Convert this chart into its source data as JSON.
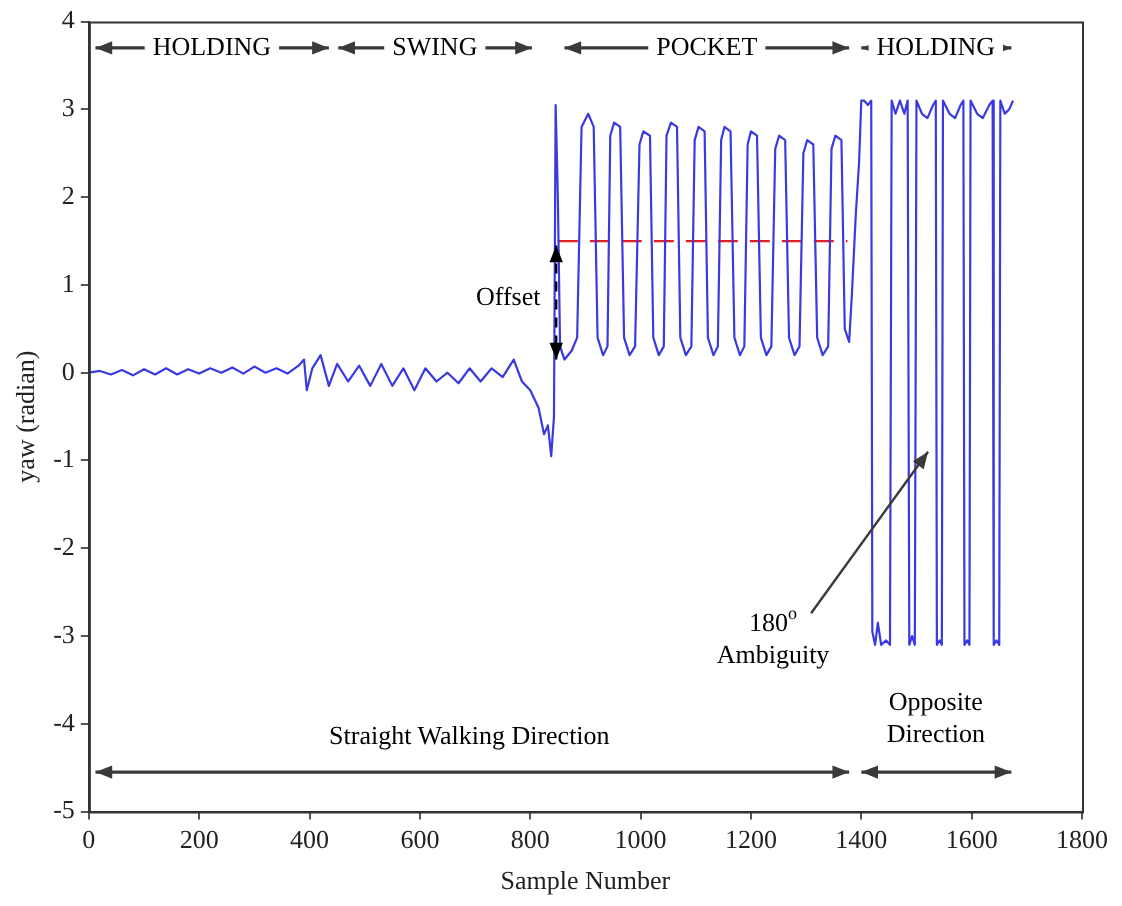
{
  "chart_data": {
    "type": "line",
    "xlabel": "Sample Number",
    "ylabel": "yaw (radian)",
    "xlim": [
      0,
      1800
    ],
    "xticks": [
      0,
      200,
      400,
      600,
      800,
      1000,
      1200,
      1400,
      1600,
      1800
    ],
    "ylim": [
      -5,
      4
    ],
    "yticks": [
      -5,
      -4,
      -3,
      -2,
      -1,
      0,
      1,
      2,
      3,
      4
    ],
    "grid": false,
    "legend": false,
    "marker": "none",
    "series": [
      {
        "color": "#3a3ae0",
        "x": [
          0,
          20,
          40,
          60,
          80,
          100,
          120,
          140,
          160,
          180,
          200,
          220,
          240,
          260,
          280,
          300,
          320,
          340,
          360,
          380,
          390,
          395,
          405,
          420,
          435,
          450,
          470,
          490,
          510,
          530,
          550,
          570,
          590,
          610,
          630,
          650,
          670,
          690,
          710,
          730,
          750,
          770,
          785,
          800,
          815,
          825,
          832,
          838,
          843,
          846,
          850,
          854,
          862,
          875,
          885,
          893,
          905,
          915,
          922,
          932,
          940,
          945,
          952,
          963,
          970,
          980,
          990,
          998,
          1005,
          1017,
          1023,
          1033,
          1042,
          1047,
          1055,
          1066,
          1072,
          1082,
          1092,
          1098,
          1105,
          1116,
          1122,
          1132,
          1140,
          1146,
          1152,
          1163,
          1170,
          1180,
          1188,
          1194,
          1200,
          1211,
          1218,
          1228,
          1237,
          1244,
          1251,
          1262,
          1269,
          1279,
          1288,
          1295,
          1302,
          1313,
          1320,
          1330,
          1340,
          1346,
          1353,
          1364,
          1370,
          1378,
          1383,
          1390,
          1396,
          1400,
          1405,
          1412,
          1418,
          1420,
          1425,
          1430,
          1436,
          1445,
          1452,
          1455,
          1462,
          1470,
          1478,
          1484,
          1487,
          1492,
          1497,
          1500,
          1510,
          1520,
          1530,
          1535,
          1537,
          1542,
          1546,
          1548,
          1560,
          1570,
          1580,
          1585,
          1587,
          1592,
          1596,
          1598,
          1610,
          1620,
          1632,
          1638,
          1640,
          1645,
          1650,
          1652,
          1660,
          1668,
          1675
        ],
        "values": [
          0.0,
          0.02,
          -0.02,
          0.03,
          -0.03,
          0.04,
          -0.02,
          0.05,
          -0.02,
          0.04,
          -0.01,
          0.05,
          0.0,
          0.06,
          -0.01,
          0.07,
          0.0,
          0.05,
          -0.01,
          0.08,
          0.15,
          -0.2,
          0.05,
          0.2,
          -0.15,
          0.1,
          -0.1,
          0.08,
          -0.15,
          0.1,
          -0.15,
          0.05,
          -0.2,
          0.05,
          -0.1,
          0.0,
          -0.12,
          0.05,
          -0.1,
          0.05,
          -0.05,
          0.15,
          -0.1,
          -0.2,
          -0.4,
          -0.7,
          -0.6,
          -0.95,
          -0.5,
          3.05,
          2.0,
          0.3,
          0.15,
          0.25,
          0.4,
          2.8,
          2.95,
          2.8,
          0.4,
          0.2,
          0.3,
          2.7,
          2.85,
          2.8,
          0.4,
          0.2,
          0.3,
          2.6,
          2.75,
          2.7,
          0.4,
          0.2,
          0.3,
          2.7,
          2.85,
          2.8,
          0.4,
          0.2,
          0.3,
          2.65,
          2.8,
          2.75,
          0.4,
          0.2,
          0.3,
          2.65,
          2.8,
          2.75,
          0.4,
          0.2,
          0.3,
          2.6,
          2.75,
          2.7,
          0.4,
          0.2,
          0.3,
          2.55,
          2.7,
          2.65,
          0.4,
          0.2,
          0.3,
          2.5,
          2.65,
          2.6,
          0.4,
          0.2,
          0.3,
          2.55,
          2.7,
          2.65,
          0.5,
          0.35,
          0.9,
          1.8,
          2.4,
          3.1,
          3.1,
          3.05,
          3.1,
          -2.95,
          -3.1,
          -2.85,
          -3.1,
          -3.05,
          -3.1,
          3.1,
          2.95,
          3.1,
          2.95,
          3.1,
          -3.1,
          -3.0,
          -3.1,
          3.1,
          2.95,
          2.9,
          3.05,
          3.1,
          -3.1,
          -3.05,
          -3.1,
          3.1,
          2.95,
          2.9,
          3.05,
          3.1,
          -3.1,
          -3.05,
          -3.1,
          3.1,
          2.95,
          2.9,
          3.05,
          3.1,
          -3.1,
          -3.05,
          -3.1,
          3.1,
          2.95,
          3.0,
          3.1
        ]
      },
      {
        "color": "#e02020",
        "line_style": "dashed",
        "x": [
          850,
          1375
        ],
        "values": [
          1.5,
          1.5
        ]
      }
    ],
    "annotations": [
      "HOLDING",
      "SWING",
      "POCKET",
      "HOLDING",
      "Offset",
      {
        "text": "180$^{o}$\nAmbiguity",
        "x": 1521,
        "y": -0.9
      },
      "Straight Walking Direction",
      "Opposite\nDirection"
    ]
  }
}
